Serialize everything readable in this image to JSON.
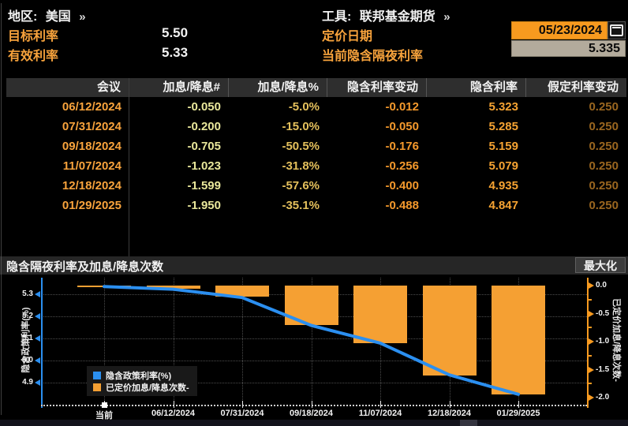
{
  "topbar": {
    "region_label": "地区:",
    "region_value": "美国",
    "region_chevron": "»",
    "tool_label": "工具:",
    "tool_value": "联邦基金期货",
    "tool_chevron": "»",
    "target_rate_label": "目标利率",
    "target_rate_value": "5.50",
    "effective_rate_label": "有效利率",
    "effective_rate_value": "5.33",
    "pricing_date_label": "定价日期",
    "pricing_date_value": "05/23/2024",
    "implied_overnight_label": "当前隐含隔夜利率",
    "implied_overnight_value": "5.335"
  },
  "table": {
    "columns": [
      "会议",
      "加息/降息#",
      "加息/降息%",
      "隐含利率变动",
      "隐含利率",
      "假定利率变动"
    ],
    "rows": [
      [
        "06/12/2024",
        "-0.050",
        "-5.0%",
        "-0.012",
        "5.323",
        "0.250"
      ],
      [
        "07/31/2024",
        "-0.200",
        "-15.0%",
        "-0.050",
        "5.285",
        "0.250"
      ],
      [
        "09/18/2024",
        "-0.705",
        "-50.5%",
        "-0.176",
        "5.159",
        "0.250"
      ],
      [
        "11/07/2024",
        "-1.023",
        "-31.8%",
        "-0.256",
        "5.079",
        "0.250"
      ],
      [
        "12/18/2024",
        "-1.599",
        "-57.6%",
        "-0.400",
        "4.935",
        "0.250"
      ],
      [
        "01/29/2025",
        "-1.950",
        "-35.1%",
        "-0.488",
        "4.847",
        "0.250"
      ]
    ]
  },
  "chart_section": {
    "title": "隐含隔夜利率及加息/降息次数",
    "maximize_label": "最大化"
  },
  "chart_data": {
    "type": "bar",
    "combo": "dual-axis line + bar",
    "title": "隐含隔夜利率及加息/降息次数",
    "categories": [
      "当前",
      "06/12/2024",
      "07/31/2024",
      "09/18/2024",
      "11/07/2024",
      "12/18/2024",
      "01/29/2025"
    ],
    "series": [
      {
        "name": "隐含政策利率(%)",
        "type": "line",
        "axis": "left",
        "color": "#2b8ff0",
        "values": [
          5.335,
          5.323,
          5.285,
          5.159,
          5.079,
          4.935,
          4.847
        ]
      },
      {
        "name": "已定价加息/降息次数-",
        "type": "bar",
        "axis": "right",
        "color": "#f5a033",
        "values": [
          0.0,
          -0.05,
          -0.2,
          -0.705,
          -1.023,
          -1.599,
          -1.95
        ]
      }
    ],
    "left_axis": {
      "title": "隐含政策利率(%)",
      "ticks": [
        5.3,
        5.2,
        5.1,
        5.0,
        4.9
      ],
      "range": [
        4.83,
        5.37
      ],
      "color": "#2b8ff0"
    },
    "right_axis": {
      "title": "已定价加息/降息次数-",
      "ticks": [
        0.0,
        -0.5,
        -1.0,
        -1.5,
        -2.0
      ],
      "range": [
        0.2,
        -2.12
      ],
      "color": "#f79a20"
    },
    "grid": "dotted",
    "legend": [
      "隐含政策利率(%)",
      "已定价加息/降息次数-"
    ],
    "legend_position": "inside-bottom-left"
  },
  "colors": {
    "accent_orange": "#f79a1f",
    "label_orange": "#f8a33c",
    "bar_orange": "#f5a033",
    "line_blue": "#2b8ff0",
    "pale_yellow": "#e9e79b",
    "dim_orange": "#9a661f",
    "header_gray": "#2e2e2e",
    "date_field_bg": "#f79a1f",
    "value_field_bg": "#b3ab9c"
  }
}
